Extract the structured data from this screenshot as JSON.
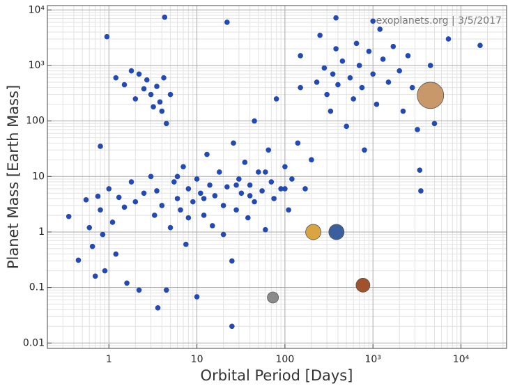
{
  "chart_data": {
    "type": "scatter",
    "annotation": "exoplanets.org | 3/5/2017",
    "x_label": "Orbital Period [Days]",
    "y_label": "Planet Mass [Earth Mass]",
    "log_x": true,
    "log_y": true,
    "grid": true,
    "minor_grid": true,
    "xlim": [
      0.2,
      33000
    ],
    "ylim": [
      0.008,
      12000
    ],
    "xticks": [
      1,
      10,
      100,
      {
        "value": 1000,
        "label": "10³"
      },
      {
        "value": 10000,
        "label": "10⁴"
      }
    ],
    "yticks": [
      0.01,
      0.1,
      1,
      10,
      100,
      {
        "value": 1000,
        "label": "10³"
      },
      {
        "value": 10000,
        "label": "10⁴"
      }
    ],
    "series": [
      {
        "color": "#2349b5",
        "x": [
          0.35,
          0.45,
          0.55,
          0.6,
          0.65,
          0.7,
          0.75,
          0.8,
          0.85,
          0.9,
          0.95,
          0.8,
          1.0,
          1.1,
          1.2,
          1.3,
          1.5,
          1.6,
          1.8,
          2.0,
          2.2,
          2.5,
          1.2,
          1.5,
          1.8,
          2.0,
          2.2,
          2.5,
          2.7,
          3.0,
          3.2,
          3.5,
          3.8,
          4.0,
          4.2,
          4.5,
          5.0,
          3.6,
          4.3,
          3.0,
          3.3,
          3.5,
          4.0,
          4.5,
          5,
          5.5,
          6,
          6.5,
          7,
          7.5,
          8,
          9,
          10,
          10,
          11,
          12,
          13,
          14,
          15,
          16,
          18,
          20,
          22,
          22,
          25,
          25,
          26,
          28,
          30,
          32,
          35,
          38,
          40,
          45,
          45,
          50,
          55,
          60,
          65,
          70,
          75,
          80,
          90,
          100,
          110,
          120,
          140,
          150,
          170,
          200,
          230,
          250,
          280,
          300,
          330,
          350,
          380,
          400,
          450,
          500,
          550,
          600,
          650,
          700,
          750,
          800,
          900,
          1000,
          1100,
          1200,
          1300,
          1500,
          1700,
          2000,
          2200,
          2500,
          2800,
          3200,
          3400,
          3500,
          3800,
          4500,
          5000,
          7200,
          16500,
          1000,
          380,
          150,
          60,
          20,
          8,
          6,
          12,
          28,
          40,
          100
        ],
        "values": [
          1.9,
          0.31,
          3.8,
          1.2,
          0.55,
          0.16,
          4.4,
          2.5,
          0.9,
          0.2,
          3300,
          35,
          6,
          1.5,
          0.4,
          4.2,
          2.8,
          0.12,
          8,
          3.5,
          0.09,
          5,
          600,
          450,
          800,
          250,
          700,
          380,
          550,
          300,
          180,
          420,
          220,
          150,
          600,
          90,
          300,
          0.043,
          7400,
          10,
          2,
          5.5,
          3,
          0.09,
          1.2,
          8,
          4,
          2.5,
          15,
          0.6,
          6,
          3.5,
          0.068,
          9,
          5,
          2,
          25,
          7,
          1.3,
          4.5,
          12,
          3,
          6000,
          6.5,
          0.3,
          0.02,
          40,
          2.5,
          9,
          5,
          18,
          1.8,
          7,
          100,
          3.5,
          12,
          5.5,
          1.1,
          30,
          8,
          4,
          250,
          6,
          15,
          2.5,
          9,
          40,
          1500,
          6,
          20,
          500,
          3500,
          900,
          300,
          150,
          700,
          2000,
          450,
          1200,
          80,
          600,
          250,
          2500,
          1000,
          400,
          30,
          1800,
          700,
          200,
          4500,
          1300,
          500,
          2200,
          800,
          150,
          1500,
          400,
          70,
          13,
          5.5,
          300,
          1000,
          90,
          3000,
          2300,
          6300,
          7200,
          400,
          12,
          0.9,
          1.8,
          10,
          4,
          7,
          4.5,
          6
        ]
      },
      {
        "colors": [
          "#8a8a8a",
          "#d9a441",
          "#3b5f9e",
          "#a0522d",
          "#c8976a"
        ],
        "x": [
          73,
          210,
          385,
          770,
          4500
        ],
        "values": [
          0.066,
          1,
          1,
          0.11,
          290
        ]
      }
    ]
  }
}
